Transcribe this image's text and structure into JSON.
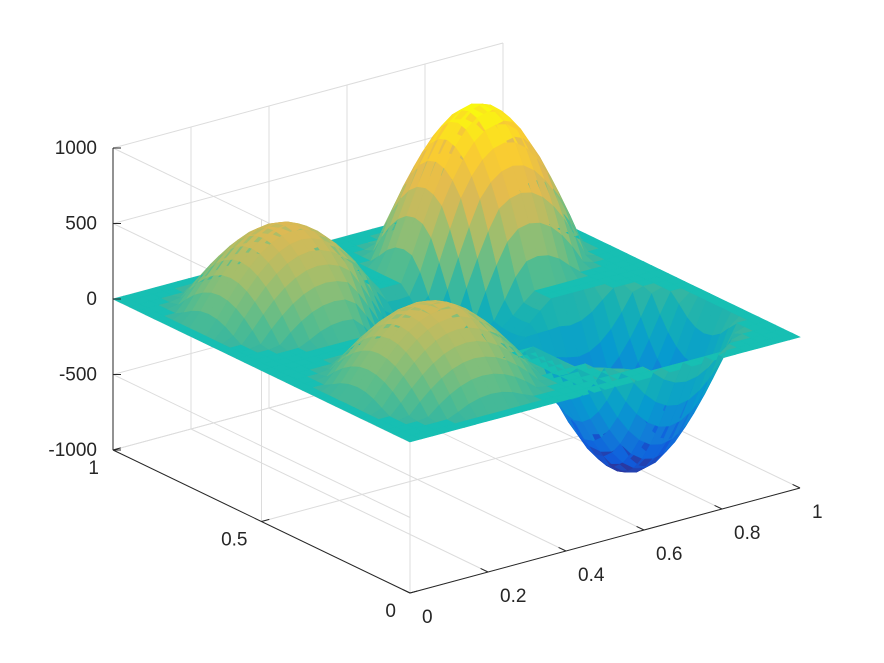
{
  "chart_data": {
    "type": "surface3d",
    "title": "",
    "xlabel": "",
    "ylabel": "",
    "zlabel": "",
    "xlim": [
      0,
      1
    ],
    "ylim": [
      0,
      1
    ],
    "zlim": [
      -1000,
      1000
    ],
    "x_ticks": [
      "0",
      "0.2",
      "0.4",
      "0.6",
      "0.8",
      "1"
    ],
    "y_ticks": [
      "0",
      "0.5",
      "1"
    ],
    "z_ticks": [
      "1000",
      "500",
      "0",
      "-500",
      "-1000"
    ],
    "grid": true,
    "colormap": "parula",
    "plane_color": "#17bfb3",
    "bumps": [
      {
        "x": 0.25,
        "y": 0.75,
        "peak": 550
      },
      {
        "x": 0.75,
        "y": 0.75,
        "peak": 1000
      },
      {
        "x": 0.75,
        "y": 0.25,
        "peak": -950
      },
      {
        "x": 0.25,
        "y": 0.25,
        "peak": 500
      },
      {
        "x": 0.5,
        "y": 0.5,
        "peak": -350
      }
    ]
  }
}
